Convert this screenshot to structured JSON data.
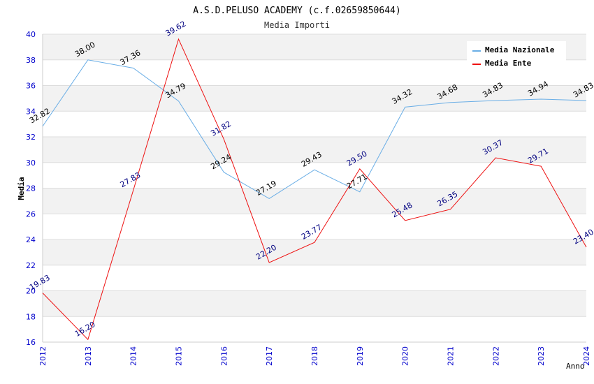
{
  "chart_data": {
    "type": "line",
    "title": "A.S.D.PELUSO ACADEMY (c.f.02659850644)",
    "subtitle": "Media Importi",
    "xlabel": "Anno",
    "ylabel": "Media",
    "x": [
      "2012",
      "2013",
      "2014",
      "2015",
      "2016",
      "2017",
      "2018",
      "2019",
      "2020",
      "2021",
      "2022",
      "2023",
      "2024"
    ],
    "ylim": [
      16,
      40
    ],
    "yticks": [
      16,
      18,
      20,
      22,
      24,
      26,
      28,
      30,
      32,
      34,
      36,
      38,
      40
    ],
    "legend_position": "top-right",
    "series": [
      {
        "name": "Media Nazionale",
        "color": "#6aaee6",
        "label_color": "#000000",
        "values": [
          32.82,
          38.0,
          37.36,
          34.79,
          29.24,
          27.19,
          29.43,
          27.71,
          34.32,
          34.68,
          34.83,
          34.94,
          34.83
        ],
        "labels": [
          "32.82",
          "38.00",
          "37.36",
          "34.79",
          "29.24",
          "27.19",
          "29.43",
          "27.71",
          "34.32",
          "34.68",
          "34.83",
          "34.94",
          "34.83"
        ]
      },
      {
        "name": "Media Ente",
        "color": "#ee1111",
        "label_color": "#000080",
        "values": [
          19.83,
          16.2,
          27.83,
          39.62,
          31.82,
          22.2,
          23.77,
          29.5,
          25.48,
          26.35,
          30.37,
          29.71,
          23.4
        ],
        "labels": [
          "19.83",
          "16.20",
          "27.83",
          "39.62",
          "31.82",
          "22.20",
          "23.77",
          "29.50",
          "25.48",
          "26.35",
          "30.37",
          "29.71",
          "23.40"
        ]
      }
    ]
  }
}
